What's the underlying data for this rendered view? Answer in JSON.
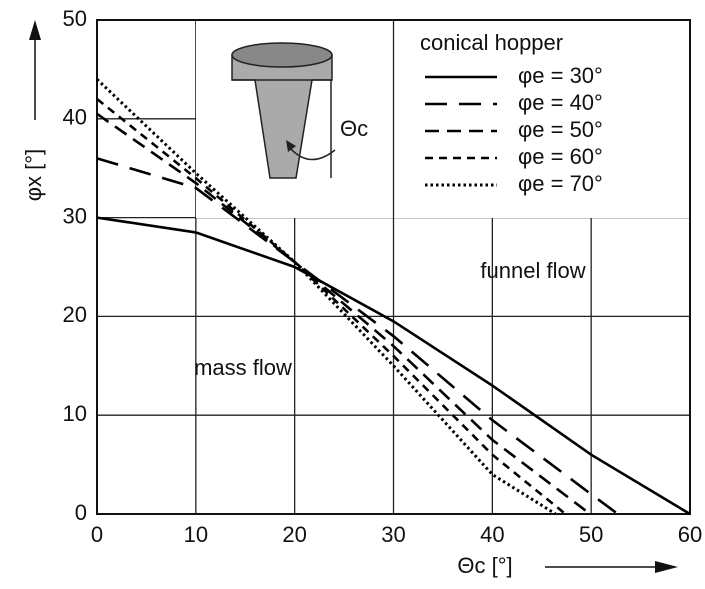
{
  "chart_data": {
    "type": "line",
    "xlabel": "Θc [°]",
    "ylabel": "φx [°]",
    "legend_title": "conical hopper",
    "annotations": [
      "funnel flow",
      "mass flow",
      "Θc"
    ],
    "xlim": [
      0,
      60
    ],
    "xticks": [
      0,
      10,
      20,
      30,
      40,
      50,
      60
    ],
    "ylim": [
      0,
      50
    ],
    "yticks": [
      0,
      10,
      20,
      30,
      40,
      50
    ],
    "grid": true,
    "legend": "upper right",
    "series": [
      {
        "name": "φe = 30°",
        "color": "#000000",
        "dash": "solid",
        "x": [
          0,
          10,
          20,
          30,
          40,
          50,
          60
        ],
        "values": [
          30,
          28.5,
          25,
          19.5,
          13,
          6,
          0
        ]
      },
      {
        "name": "φe = 40°",
        "color": "#000000",
        "dash": "long",
        "x": [
          0,
          10,
          20,
          30,
          40,
          50,
          52.7
        ],
        "values": [
          36,
          33,
          25.5,
          18,
          9.5,
          2,
          0
        ]
      },
      {
        "name": "φe = 50°",
        "color": "#000000",
        "dash": "medium",
        "x": [
          0,
          10,
          20,
          30,
          40,
          49.9
        ],
        "values": [
          40.5,
          33.5,
          25.5,
          17,
          7.5,
          0
        ]
      },
      {
        "name": "φe = 60°",
        "color": "#000000",
        "dash": "short",
        "x": [
          0,
          10,
          20,
          30,
          40,
          47.4
        ],
        "values": [
          42,
          34,
          25.5,
          16,
          6,
          0
        ]
      },
      {
        "name": "φe = 70°",
        "color": "#000000",
        "dash": "dotted",
        "x": [
          0,
          10,
          20,
          30,
          40,
          46.4
        ],
        "values": [
          44,
          34.5,
          25.5,
          15,
          4,
          0
        ]
      }
    ]
  }
}
